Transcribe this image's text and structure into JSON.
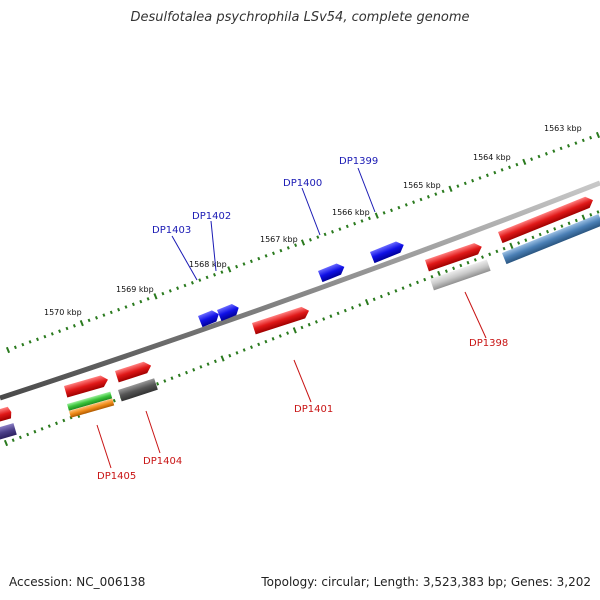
{
  "title": "Desulfotalea psychrophila LSv54, complete genome",
  "footer": {
    "accession": "Accession: NC_006138",
    "summary": "Topology: circular; Length: 3,523,383 bp; Genes: 3,202"
  },
  "colors": {
    "backbone": "#8a8a8a",
    "tick": "#2a7a1e",
    "upper_label": "#1a1ab4",
    "lower_label": "#c81414",
    "red": "#e01818",
    "blue": "#1010e6",
    "steelblue": "#4a7fb5",
    "gray_light": "#c8c8c8",
    "gray_dark": "#555555",
    "green": "#39c43a",
    "orange": "#f08c1a",
    "purple": "#4c3f8a"
  },
  "kbp_labels": [
    "1563 kbp",
    "1564 kbp",
    "1565 kbp",
    "1566 kbp",
    "1567 kbp",
    "1568 kbp",
    "1569 kbp",
    "1570 kbp"
  ],
  "gene_labels": {
    "upper": [
      "DP1399",
      "DP1400",
      "DP1402",
      "DP1403"
    ],
    "lower": [
      "DP1398",
      "DP1401",
      "DP1404",
      "DP1405"
    ]
  }
}
